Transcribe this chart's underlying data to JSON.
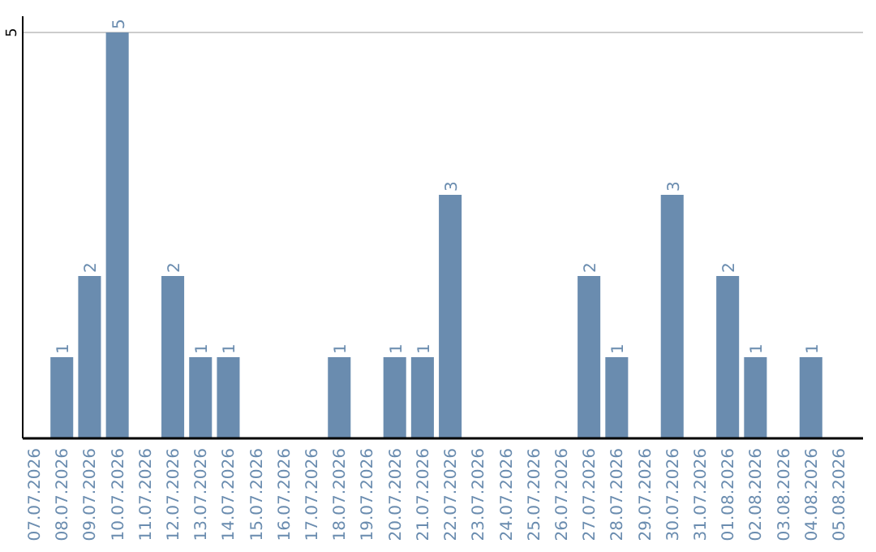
{
  "chart_data": {
    "type": "bar",
    "categories": [
      "07.07.2026",
      "08.07.2026",
      "09.07.2026",
      "10.07.2026",
      "11.07.2026",
      "12.07.2026",
      "13.07.2026",
      "14.07.2026",
      "15.07.2026",
      "16.07.2026",
      "17.07.2026",
      "18.07.2026",
      "19.07.2026",
      "20.07.2026",
      "21.07.2026",
      "22.07.2026",
      "23.07.2026",
      "24.07.2026",
      "25.07.2026",
      "26.07.2026",
      "27.07.2026",
      "28.07.2026",
      "29.07.2026",
      "30.07.2026",
      "31.07.2026",
      "01.08.2026",
      "02.08.2026",
      "03.08.2026",
      "04.08.2026",
      "05.08.2026"
    ],
    "values": [
      0,
      1,
      2,
      5,
      0,
      2,
      1,
      1,
      0,
      0,
      0,
      1,
      0,
      1,
      1,
      3,
      0,
      0,
      0,
      0,
      2,
      1,
      0,
      3,
      0,
      2,
      1,
      0,
      1,
      0
    ],
    "value_labels": [
      null,
      "1",
      "2",
      "5",
      null,
      "2",
      "1",
      "1",
      null,
      null,
      null,
      "1",
      null,
      "1",
      "1",
      "3",
      null,
      null,
      null,
      null,
      "2",
      "1",
      null,
      "3",
      null,
      "2",
      "1",
      null,
      "1",
      null
    ],
    "color": "#6a8caf",
    "ylim": [
      0,
      5.2
    ],
    "yticks": [
      5
    ],
    "grid": "y"
  }
}
